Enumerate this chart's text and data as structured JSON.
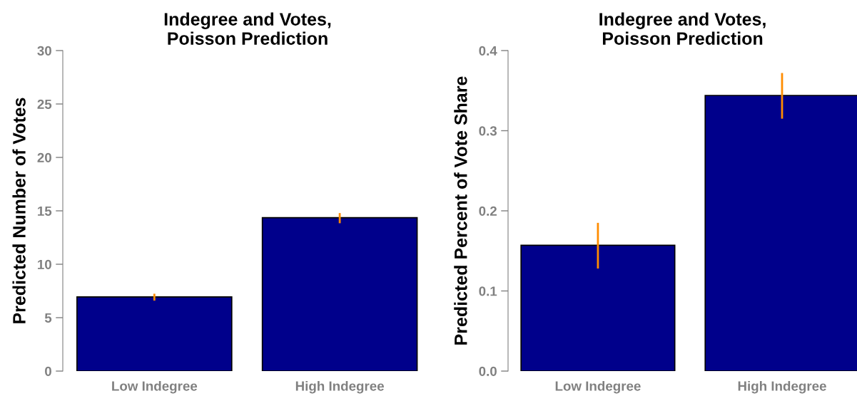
{
  "chart_data": [
    {
      "type": "bar",
      "title": "Indegree and Votes,\nPoisson Prediction",
      "ylabel": "Predicted Number of Votes",
      "categories": [
        "Low Indegree",
        "High Indegree"
      ],
      "values": [
        6.94,
        14.36
      ],
      "color": "#00008b",
      "errors": [
        [
          6.6,
          7.24
        ],
        [
          13.84,
          14.79
        ]
      ],
      "ylim": [
        0,
        30
      ],
      "yticks": [
        0,
        5,
        10,
        15,
        20,
        25,
        30
      ],
      "grid": false,
      "legend": false
    },
    {
      "type": "bar",
      "title": "Indegree and Votes,\nPoisson Prediction",
      "ylabel": "Predicted Percent of Vote Share",
      "categories": [
        "Low Indegree",
        "High Indegree"
      ],
      "values": [
        0.157,
        0.344
      ],
      "color": "#00008b",
      "errors": [
        [
          0.128,
          0.185
        ],
        [
          0.315,
          0.372
        ]
      ],
      "ylim": [
        0,
        0.4
      ],
      "yticks": [
        {
          "value": 0,
          "label": "0.0"
        },
        0.1,
        0.2,
        0.3,
        0.4
      ],
      "grid": false,
      "legend": false
    }
  ]
}
